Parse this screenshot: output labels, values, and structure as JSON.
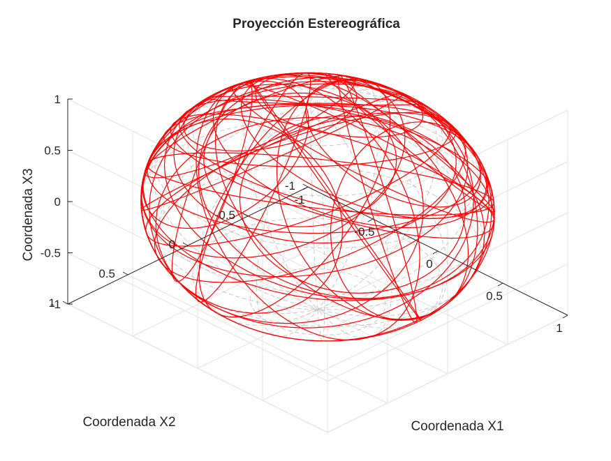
{
  "chart_data": {
    "type": "line3d",
    "title": "Proyección Estereográfica",
    "xlabel": "Coordenada X1",
    "ylabel": "Coordenada X2",
    "zlabel": "Coordenada X3",
    "xlim": [
      -1,
      1
    ],
    "ylim": [
      -1,
      1
    ],
    "zlim": [
      -1,
      1
    ],
    "xticks": [
      -1,
      -0.5,
      0,
      0.5,
      1
    ],
    "yticks": [
      -1,
      -0.5,
      0,
      0.5,
      1
    ],
    "zticks": [
      -1,
      -0.5,
      0,
      0.5,
      1
    ],
    "xtick_labels": [
      "-1",
      "-0.5",
      "0",
      "0.5",
      "1"
    ],
    "ytick_labels": [
      "-1",
      "-0.5",
      "0",
      "0.5",
      "1"
    ],
    "ztick_labels": [
      "-1",
      "-0.5",
      "0",
      "0.5",
      "1"
    ],
    "grid": true,
    "box": "open",
    "series": [
      {
        "kind": "unit-sphere-wireframe",
        "style": "dashed",
        "color": "#c8c8c8",
        "meridians": 16,
        "parallels": 8
      },
      {
        "kind": "projected-circles-on-sphere",
        "style": "solid",
        "color": "#ff0000",
        "count": 40
      }
    ]
  }
}
